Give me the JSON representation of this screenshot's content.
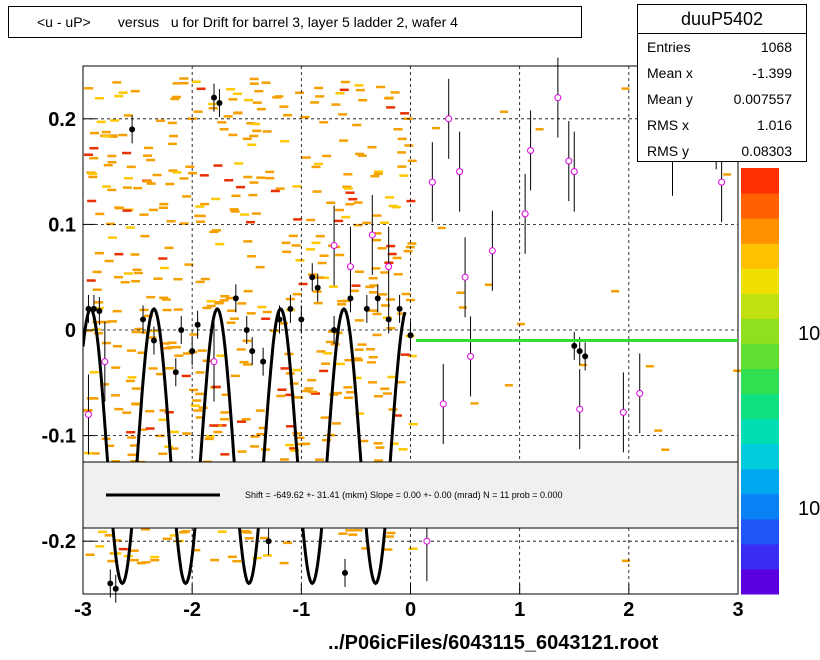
{
  "title": "<u - uP>       versus   u for Drift for barrel 3, layer 5 ladder 2, wafer 4",
  "stats": {
    "name": "duuP5402",
    "entries_label": "Entries",
    "entries": "1068",
    "mean_x_label": "Mean x",
    "mean_x": "-1.399",
    "mean_y_label": "Mean y",
    "mean_y": "0.007557",
    "rms_x_label": "RMS x",
    "rms_x": "1.016",
    "rms_y_label": "RMS y",
    "rms_y": "0.08303"
  },
  "fit_text": "Shift =  -649.62 +- 31.41 (mkm) Slope =     0.00 +- 0.00 (mrad)  N = 11 prob = 0.000",
  "footer": "../P06icFiles/6043115_6043121.root",
  "colors": {
    "fit_line": "#000000",
    "green_line": "#33dd33",
    "marker_open": "#dd00dd",
    "box_fill": "#f0f0f0"
  },
  "chart_data": {
    "type": "scatter",
    "xlim": [
      -3,
      3
    ],
    "ylim": [
      -0.25,
      0.25
    ],
    "x_ticks": [
      "-3",
      "-2",
      "-1",
      "0",
      "1",
      "2",
      "3"
    ],
    "y_ticks": [
      "-0.2",
      "-0.1",
      "0",
      "0.1",
      "0.2"
    ],
    "grid": true,
    "palette_labels": [
      "10",
      "10"
    ],
    "fit_curve": {
      "shape": "sinusoid",
      "x_range": [
        -3,
        -0.05
      ],
      "amplitude_est": 0.12,
      "offset_est": -0.11,
      "period_est": 0.58
    },
    "green_line": {
      "x": [
        0.05,
        3.0
      ],
      "y": -0.01
    },
    "profile_points": [
      [
        -2.95,
        0.02
      ],
      [
        -2.9,
        0.02
      ],
      [
        -2.85,
        0.018
      ],
      [
        -2.55,
        0.19
      ],
      [
        -2.45,
        0.01
      ],
      [
        -2.35,
        -0.01
      ],
      [
        -2.15,
        -0.04
      ],
      [
        -2.1,
        0.0
      ],
      [
        -2.0,
        -0.02
      ],
      [
        -1.95,
        0.005
      ],
      [
        -1.8,
        0.22
      ],
      [
        -1.75,
        0.215
      ],
      [
        -1.6,
        0.03
      ],
      [
        -1.5,
        0.0
      ],
      [
        -1.45,
        -0.02
      ],
      [
        -1.35,
        -0.03
      ],
      [
        -1.3,
        -0.2
      ],
      [
        -1.2,
        0.01
      ],
      [
        -1.1,
        0.02
      ],
      [
        -1.0,
        0.01
      ],
      [
        -0.9,
        0.05
      ],
      [
        -0.85,
        0.04
      ],
      [
        -0.7,
        0.0
      ],
      [
        -0.6,
        -0.23
      ],
      [
        -0.55,
        0.03
      ],
      [
        -0.4,
        0.02
      ],
      [
        -0.3,
        0.03
      ],
      [
        -0.2,
        0.01
      ],
      [
        -0.1,
        0.02
      ],
      [
        0.0,
        -0.005
      ],
      [
        1.5,
        -0.015
      ],
      [
        1.55,
        -0.02
      ],
      [
        1.6,
        -0.025
      ],
      [
        -2.75,
        -0.24
      ],
      [
        -2.7,
        -0.245
      ]
    ],
    "open_points": [
      [
        0.2,
        0.14
      ],
      [
        0.35,
        0.2
      ],
      [
        0.45,
        0.15
      ],
      [
        0.5,
        0.05
      ],
      [
        0.55,
        -0.025
      ],
      [
        0.75,
        0.075
      ],
      [
        1.05,
        0.11
      ],
      [
        1.1,
        0.17
      ],
      [
        1.35,
        0.22
      ],
      [
        1.45,
        0.16
      ],
      [
        1.5,
        0.15
      ],
      [
        1.55,
        -0.075
      ],
      [
        2.1,
        -0.06
      ],
      [
        1.95,
        -0.078
      ],
      [
        2.4,
        0.165
      ],
      [
        2.8,
        0.19
      ],
      [
        2.85,
        0.14
      ],
      [
        0.3,
        -0.07
      ],
      [
        0.15,
        -0.2
      ],
      [
        -2.95,
        -0.08
      ],
      [
        -2.8,
        -0.03
      ],
      [
        -1.8,
        -0.03
      ],
      [
        -0.7,
        0.08
      ],
      [
        -0.55,
        0.06
      ],
      [
        -0.35,
        0.09
      ],
      [
        -0.2,
        0.06
      ]
    ]
  }
}
